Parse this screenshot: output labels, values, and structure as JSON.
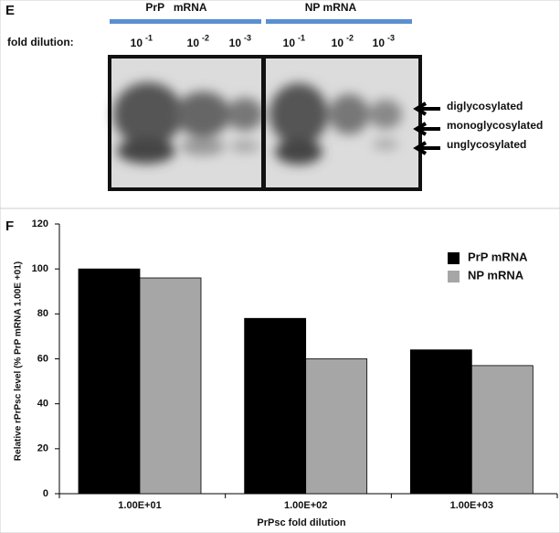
{
  "panel_e": {
    "label": "E",
    "groups": [
      "PrP   mRNA",
      "NP mRNA"
    ],
    "row_label": "fold dilution:",
    "dilutions": [
      {
        "base": "10",
        "exponent": "-1"
      },
      {
        "base": "10",
        "exponent": "-2"
      },
      {
        "base": "10",
        "exponent": "-3"
      },
      {
        "base": "10",
        "exponent": "-1"
      },
      {
        "base": "10",
        "exponent": "-2"
      },
      {
        "base": "10",
        "exponent": "-3"
      }
    ],
    "bands": [
      "diglycosylated",
      "monoglycosylated",
      "unglycosylated"
    ]
  },
  "chart_data": {
    "type": "bar",
    "panel_label": "F",
    "x_label": "PrPsc fold dilution",
    "y_label": "Relative rPrPsc level (% PrP mRNA 1.00E +01)",
    "categories": [
      "1.00E+01",
      "1.00E+02",
      "1.00E+03"
    ],
    "series": [
      {
        "name": "PrP mRNA",
        "color": "#000000",
        "values": [
          100,
          78,
          64
        ]
      },
      {
        "name": "NP mRNA",
        "color": "#a6a6a6",
        "values": [
          96,
          60,
          57
        ]
      }
    ],
    "ylim": [
      0,
      120
    ],
    "yticks": [
      0,
      20,
      40,
      60,
      80,
      100,
      120
    ],
    "legend": "upper right"
  }
}
